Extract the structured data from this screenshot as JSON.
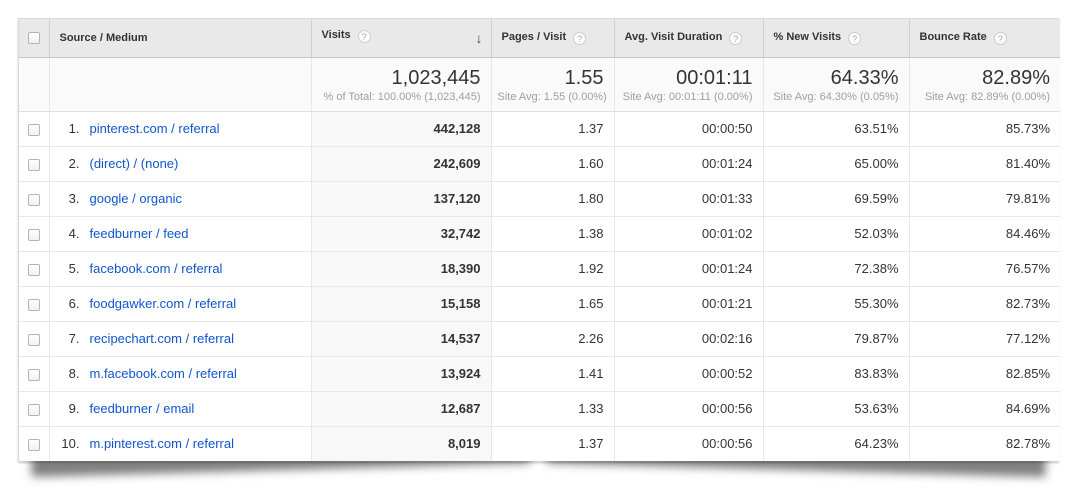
{
  "icons": {
    "help": "?",
    "sort_desc": "↓"
  },
  "colors": {
    "link_blue": "#1155cc",
    "header_bg": "#e9e9e9",
    "sorted_column_bg": "#f8f8f8",
    "text": "#333333",
    "muted": "#9e9e9e"
  },
  "table": {
    "columns": [
      {
        "label": "Source / Medium"
      },
      {
        "label": "Visits",
        "sorted": "desc"
      },
      {
        "label": "Pages / Visit"
      },
      {
        "label": "Avg. Visit Duration"
      },
      {
        "label": "% New Visits"
      },
      {
        "label": "Bounce Rate"
      }
    ],
    "summary": {
      "visits": {
        "value": "1,023,445",
        "sub": "% of Total: 100.00% (1,023,445)"
      },
      "pages_per_visit": {
        "value": "1.55",
        "sub": "Site Avg: 1.55 (0.00%)"
      },
      "avg_visit_duration": {
        "value": "00:01:11",
        "sub": "Site Avg: 00:01:11 (0.00%)"
      },
      "pct_new_visits": {
        "value": "64.33%",
        "sub": "Site Avg: 64.30% (0.05%)"
      },
      "bounce_rate": {
        "value": "82.89%",
        "sub": "Site Avg: 82.89% (0.00%)"
      }
    },
    "rows": [
      {
        "rank": "1.",
        "source_medium": "pinterest.com / referral",
        "visits": "442,128",
        "pages_per_visit": "1.37",
        "avg_visit_duration": "00:00:50",
        "pct_new_visits": "63.51%",
        "bounce_rate": "85.73%"
      },
      {
        "rank": "2.",
        "source_medium": "(direct) / (none)",
        "visits": "242,609",
        "pages_per_visit": "1.60",
        "avg_visit_duration": "00:01:24",
        "pct_new_visits": "65.00%",
        "bounce_rate": "81.40%"
      },
      {
        "rank": "3.",
        "source_medium": "google / organic",
        "visits": "137,120",
        "pages_per_visit": "1.80",
        "avg_visit_duration": "00:01:33",
        "pct_new_visits": "69.59%",
        "bounce_rate": "79.81%"
      },
      {
        "rank": "4.",
        "source_medium": "feedburner / feed",
        "visits": "32,742",
        "pages_per_visit": "1.38",
        "avg_visit_duration": "00:01:02",
        "pct_new_visits": "52.03%",
        "bounce_rate": "84.46%"
      },
      {
        "rank": "5.",
        "source_medium": "facebook.com / referral",
        "visits": "18,390",
        "pages_per_visit": "1.92",
        "avg_visit_duration": "00:01:24",
        "pct_new_visits": "72.38%",
        "bounce_rate": "76.57%"
      },
      {
        "rank": "6.",
        "source_medium": "foodgawker.com / referral",
        "visits": "15,158",
        "pages_per_visit": "1.65",
        "avg_visit_duration": "00:01:21",
        "pct_new_visits": "55.30%",
        "bounce_rate": "82.73%"
      },
      {
        "rank": "7.",
        "source_medium": "recipechart.com / referral",
        "visits": "14,537",
        "pages_per_visit": "2.26",
        "avg_visit_duration": "00:02:16",
        "pct_new_visits": "79.87%",
        "bounce_rate": "77.12%"
      },
      {
        "rank": "8.",
        "source_medium": "m.facebook.com / referral",
        "visits": "13,924",
        "pages_per_visit": "1.41",
        "avg_visit_duration": "00:00:52",
        "pct_new_visits": "83.83%",
        "bounce_rate": "82.85%"
      },
      {
        "rank": "9.",
        "source_medium": "feedburner / email",
        "visits": "12,687",
        "pages_per_visit": "1.33",
        "avg_visit_duration": "00:00:56",
        "pct_new_visits": "53.63%",
        "bounce_rate": "84.69%"
      },
      {
        "rank": "10.",
        "source_medium": "m.pinterest.com / referral",
        "visits": "8,019",
        "pages_per_visit": "1.37",
        "avg_visit_duration": "00:00:56",
        "pct_new_visits": "64.23%",
        "bounce_rate": "82.78%"
      }
    ]
  }
}
